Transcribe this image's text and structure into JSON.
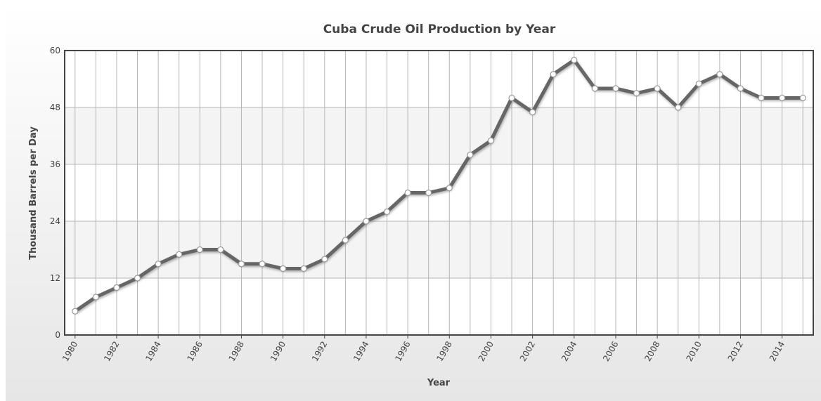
{
  "chart_data": {
    "type": "line",
    "title": "Cuba Crude Oil Production by Year",
    "x_label": "Year",
    "y_label": "Thousand Barrels per Day",
    "x": [
      1980,
      1981,
      1982,
      1983,
      1984,
      1985,
      1986,
      1987,
      1988,
      1989,
      1990,
      1991,
      1992,
      1993,
      1994,
      1995,
      1996,
      1997,
      1998,
      1999,
      2000,
      2001,
      2002,
      2003,
      2004,
      2005,
      2006,
      2007,
      2008,
      2009,
      2010,
      2011,
      2012,
      2013,
      2014,
      2015
    ],
    "series": [
      {
        "name": "Crude Oil Production",
        "color": "#666666",
        "values": [
          5,
          8,
          10,
          12,
          15,
          17,
          18,
          18,
          15,
          15,
          14,
          14,
          16,
          20,
          24,
          26,
          30,
          30,
          31,
          38,
          41,
          50,
          47,
          55,
          58,
          52,
          52,
          51,
          52,
          48,
          53,
          55,
          52,
          50,
          50,
          50
        ]
      }
    ],
    "xlim": [
      1979.5,
      2015.5
    ],
    "xticks": [
      1980,
      1982,
      1984,
      1986,
      1988,
      1990,
      1992,
      1994,
      1996,
      1998,
      2000,
      2002,
      2004,
      2006,
      2008,
      2010,
      2012,
      2014
    ],
    "ylim": [
      0,
      60
    ],
    "yticks": [
      0,
      12,
      24,
      36,
      48,
      60
    ],
    "grid": true
  }
}
